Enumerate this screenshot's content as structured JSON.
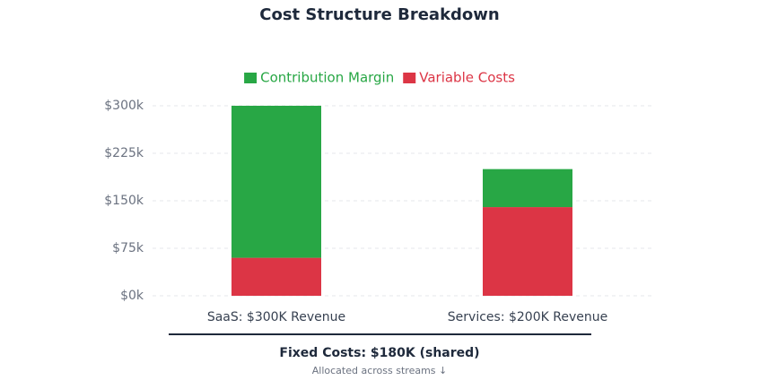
{
  "chart_data": {
    "type": "stacked_bar",
    "title": "Cost Structure Breakdown",
    "categories": [
      "SaaS: $300K Revenue",
      "Services: $200K Revenue"
    ],
    "series": [
      {
        "name": "Contribution Margin",
        "color": "#28a745",
        "values": [
          240000,
          60000
        ]
      },
      {
        "name": "Variable Costs",
        "color": "#dc3545",
        "values": [
          60000,
          140000
        ]
      }
    ],
    "ylim": [
      0,
      300000
    ],
    "yticks": [
      {
        "value": 0,
        "label": "$0k"
      },
      {
        "value": 75000,
        "label": "$75k"
      },
      {
        "value": 150000,
        "label": "$150k"
      },
      {
        "value": 225000,
        "label": "$225k"
      },
      {
        "value": 300000,
        "label": "$300k"
      }
    ],
    "grid": true,
    "legend": "top",
    "annotations": [
      "Fixed Costs: $180K (shared)",
      "Allocated across streams ↓"
    ]
  }
}
